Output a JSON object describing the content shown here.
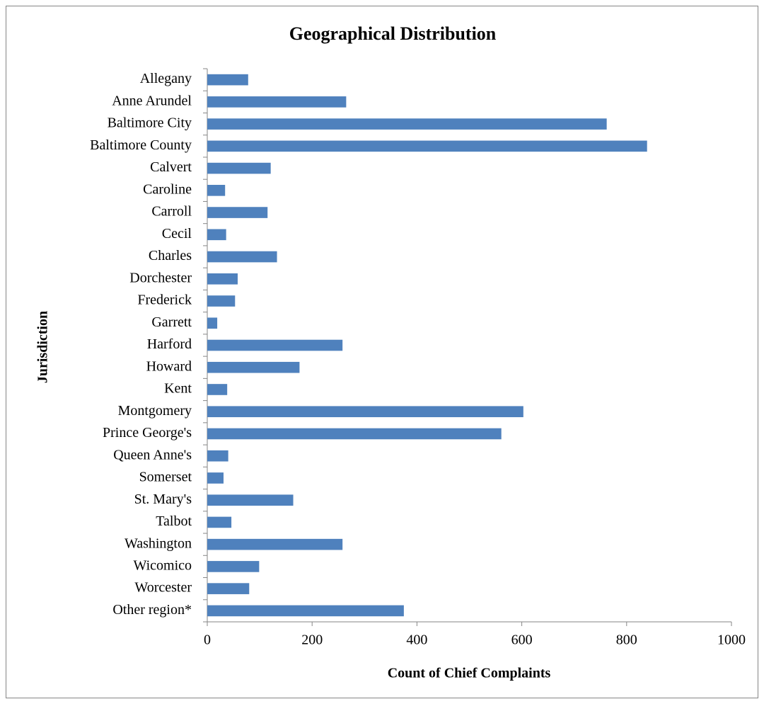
{
  "chart_data": {
    "type": "bar",
    "orientation": "horizontal",
    "title": "Geographical Distribution",
    "x_label": "Count of Chief Complaints",
    "y_label": "Jurisdiction",
    "categories": [
      "Allegany",
      "Anne Arundel",
      "Baltimore City",
      "Baltimore County",
      "Calvert",
      "Caroline",
      "Carroll",
      "Cecil",
      "Charles",
      "Dorchester",
      "Frederick",
      "Garrett",
      "Harford",
      "Howard",
      "Kent",
      "Montgomery",
      "Prince George's",
      "Queen Anne's",
      "Somerset",
      "St. Mary's",
      "Talbot",
      "Washington",
      "Wicomico",
      "Worcester",
      "Other region*"
    ],
    "values": [
      78,
      265,
      762,
      839,
      121,
      34,
      115,
      36,
      133,
      58,
      53,
      19,
      258,
      176,
      38,
      603,
      561,
      40,
      31,
      164,
      46,
      258,
      99,
      80,
      375
    ],
    "color": "#4f81bd",
    "xlim": [
      0,
      1000
    ],
    "xticks": [
      0,
      200,
      400,
      600,
      800,
      1000
    ],
    "grid": false
  }
}
